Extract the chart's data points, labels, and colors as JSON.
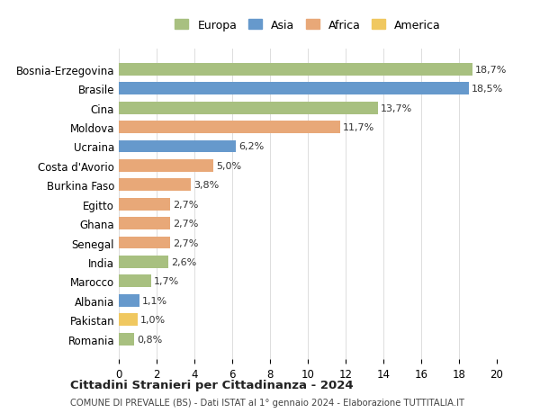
{
  "countries": [
    "Romania",
    "Pakistan",
    "Albania",
    "Marocco",
    "India",
    "Senegal",
    "Ghana",
    "Egitto",
    "Burkina Faso",
    "Costa d'Avorio",
    "Ucraina",
    "Moldova",
    "Cina",
    "Brasile",
    "Bosnia-Erzegovina"
  ],
  "values": [
    18.7,
    18.5,
    13.7,
    11.7,
    6.2,
    5.0,
    3.8,
    2.7,
    2.7,
    2.7,
    2.6,
    1.7,
    1.1,
    1.0,
    0.8
  ],
  "labels": [
    "18,7%",
    "18,5%",
    "13,7%",
    "11,7%",
    "6,2%",
    "5,0%",
    "3,8%",
    "2,7%",
    "2,7%",
    "2,7%",
    "2,6%",
    "1,7%",
    "1,1%",
    "1,0%",
    "0,8%"
  ],
  "continents": [
    "Europa",
    "Asia",
    "Europa",
    "Africa",
    "Asia",
    "Africa",
    "Africa",
    "Africa",
    "Africa",
    "Africa",
    "Europa",
    "Europa",
    "Asia",
    "America",
    "Europa"
  ],
  "colors": {
    "Europa": "#a8c080",
    "Asia": "#6699cc",
    "Africa": "#e8a878",
    "America": "#f0c860"
  },
  "legend_order": [
    "Europa",
    "Asia",
    "Africa",
    "America"
  ],
  "title": "Cittadini Stranieri per Cittadinanza - 2024",
  "subtitle": "COMUNE DI PREVALLE (BS) - Dati ISTAT al 1° gennaio 2024 - Elaborazione TUTTITALIA.IT",
  "xlim": [
    0,
    20
  ],
  "xticks": [
    0,
    2,
    4,
    6,
    8,
    10,
    12,
    14,
    16,
    18,
    20
  ],
  "background_color": "#ffffff",
  "grid_color": "#dddddd"
}
